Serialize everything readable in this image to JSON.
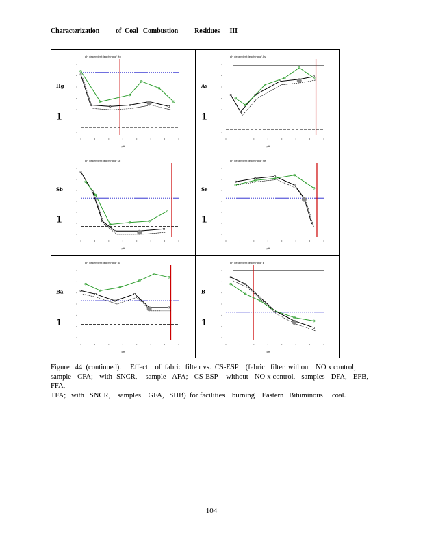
{
  "header": {
    "title": "Characterization          of  Coal   Combustion          Residues      III"
  },
  "figure": {
    "panels": [
      {
        "id": "panel-1",
        "label": "pH dependent leaching of Hg",
        "tag": "Hg"
      },
      {
        "id": "panel-2",
        "label": "pH dependent leaching of As",
        "tag": "As"
      },
      {
        "id": "panel-3",
        "label": "pH dependent leaching of Sb",
        "tag": "Sb"
      },
      {
        "id": "panel-4",
        "label": "pH dependent leaching of Se",
        "tag": "Se"
      },
      {
        "id": "panel-5",
        "label": "pH dependent leaching of Ba",
        "tag": "Ba"
      },
      {
        "id": "panel-6",
        "label": "pH dependent leaching of B",
        "tag": "B"
      }
    ],
    "axis_text": {
      "y_large": "1",
      "x_tick": "pH"
    }
  },
  "caption": {
    "lines": [
      "Figure   44  (continued).     Effect    of  fabric  filte r vs.  CS-ESP    (fabric   filter  without   NO x control,",
      "sample   CFA;   with  SNCR,    sample   AFA;   CS-ESP    without   NO x control,   samples   DFA,   EFB,   FFA,",
      "TFA;   with   SNCR,    samples    GFA,   SHB)  for facilities    burning    Eastern   Bituminous     coal."
    ]
  },
  "page_number": "104",
  "colors": {
    "axis": "#000000",
    "regulatory_line": "#1a1acc",
    "ph_line": "#cc0000",
    "series_green": "#2e9e2e",
    "marker_grey": "#888888"
  }
}
